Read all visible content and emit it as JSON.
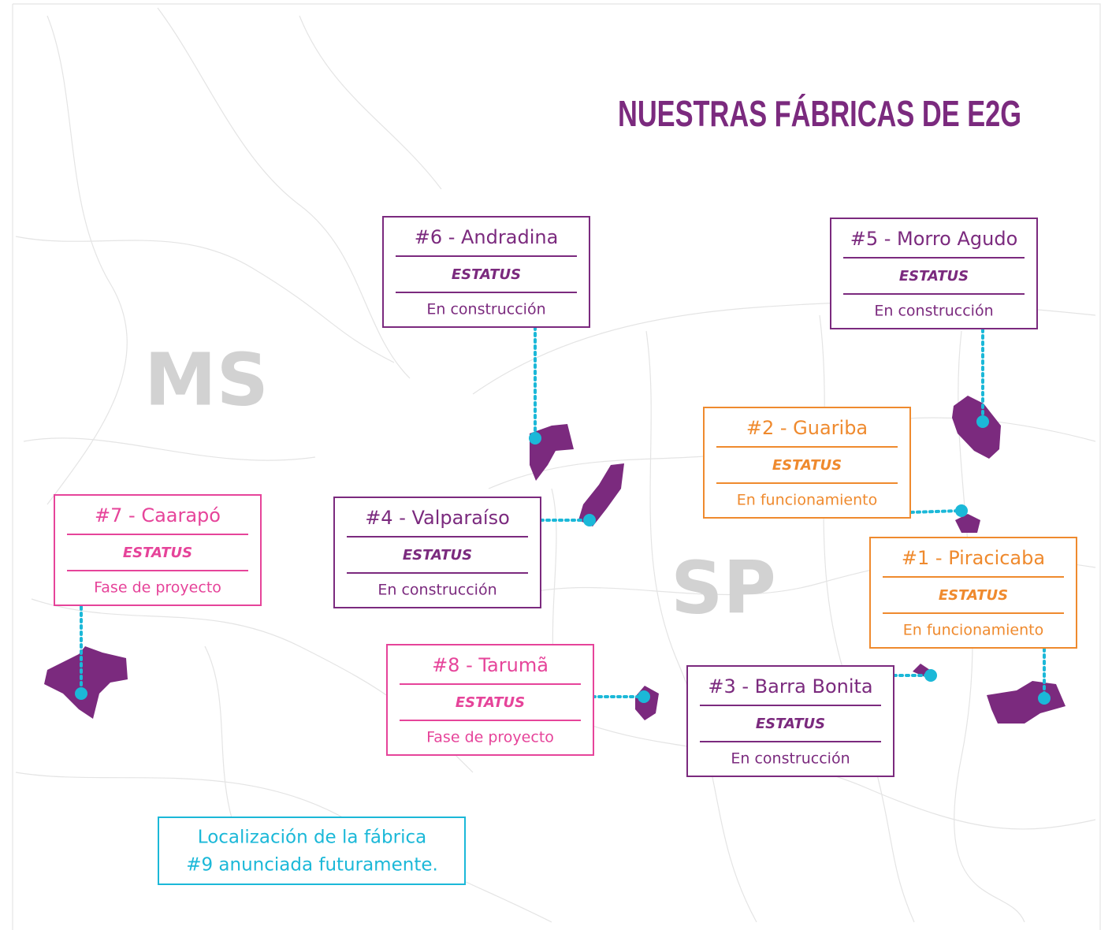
{
  "title": "NUESTRAS FÁBRICAS DE E2G",
  "states": [
    "MS",
    "SP"
  ],
  "factories": [
    {
      "name": "#6 - Andradina",
      "heading": "ESTATUS",
      "status": "En construcción",
      "color": "#7b2a7e"
    },
    {
      "name": "#5 - Morro Agudo",
      "heading": "ESTATUS",
      "status": "En construcción",
      "color": "#7b2a7e"
    },
    {
      "name": "#2 - Guariba",
      "heading": "ESTATUS",
      "status": "En funcionamiento",
      "color": "#ef8a2e"
    },
    {
      "name": "#7 - Caarapó",
      "heading": "ESTATUS",
      "status": "Fase de proyecto",
      "color": "#e6449a"
    },
    {
      "name": "#4 - Valparaíso",
      "heading": "ESTATUS",
      "status": "En construcción",
      "color": "#7b2a7e"
    },
    {
      "name": "#1 - Piracicaba",
      "heading": "ESTATUS",
      "status": "En funcionamiento",
      "color": "#ef8a2e"
    },
    {
      "name": "#8 - Tarumã",
      "heading": "ESTATUS",
      "status": "Fase de proyecto",
      "color": "#e6449a"
    },
    {
      "name": "#3 - Barra Bonita",
      "heading": "ESTATUS",
      "status": "En construcción",
      "color": "#7b2a7e"
    }
  ],
  "note": [
    "Localización de la fábrica",
    "#9 anunciada futuramente."
  ]
}
